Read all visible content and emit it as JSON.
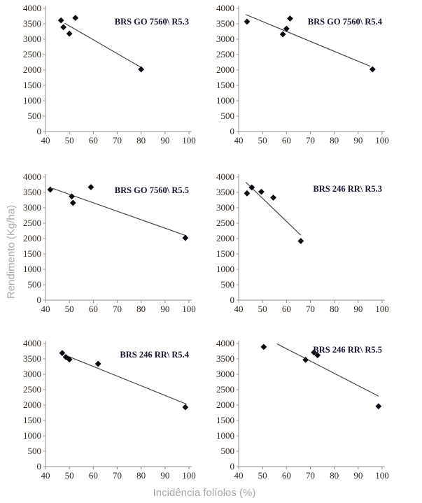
{
  "figure": {
    "ylabel": "Rendimento (Kg/ha)",
    "xlabel": "Incidência folíolos (%)"
  },
  "axes": {
    "x_min": 40,
    "x_max": 100,
    "x_ticks": [
      40,
      50,
      60,
      70,
      80,
      90,
      100
    ],
    "y_min": 0,
    "y_max": 4000,
    "y_ticks": [
      0,
      500,
      1000,
      1500,
      2000,
      2500,
      3000,
      3500,
      4000
    ],
    "grid": false,
    "legend": "none"
  },
  "colors": {
    "point": "#0a0a12",
    "trend": "#474747",
    "axis": "#909090",
    "tick_label": "#33291f",
    "title": "#181830",
    "axis_label": "#a8a8a8",
    "background": "#ffffff"
  },
  "chart_data": [
    {
      "type": "scatter",
      "title": "BRS GO 7560\\ R5.3",
      "points": [
        [
          46.5,
          3610
        ],
        [
          47.5,
          3390
        ],
        [
          50,
          3180
        ],
        [
          52.5,
          3690
        ],
        [
          80,
          2020
        ]
      ],
      "trendline": {
        "x1": 48,
        "y1": 3520,
        "x2": 80.5,
        "y2": 2060
      },
      "title_y": 32
    },
    {
      "type": "scatter",
      "title": "BRS GO 7560\\ R5.4",
      "points": [
        [
          43.5,
          3570
        ],
        [
          58.5,
          3160
        ],
        [
          60,
          3340
        ],
        [
          61.5,
          3670
        ],
        [
          96,
          2020
        ]
      ],
      "trendline": {
        "x1": 43,
        "y1": 3800,
        "x2": 95,
        "y2": 2120
      },
      "title_y": 32
    },
    {
      "type": "scatter",
      "title": "BRS GO 7560\\ R5.5",
      "points": [
        [
          42,
          3590
        ],
        [
          51,
          3370
        ],
        [
          51.5,
          3160
        ],
        [
          59,
          3670
        ],
        [
          98.5,
          2020
        ]
      ],
      "trendline": {
        "x1": 43,
        "y1": 3630,
        "x2": 99,
        "y2": 2090
      },
      "title_y": 32
    },
    {
      "type": "scatter",
      "title": "BRS 246 RR\\ R5.3",
      "points": [
        [
          43.5,
          3470
        ],
        [
          45.5,
          3660
        ],
        [
          49.5,
          3520
        ],
        [
          54.5,
          3330
        ],
        [
          66,
          1920
        ]
      ],
      "trendline": {
        "x1": 43,
        "y1": 3830,
        "x2": 66,
        "y2": 2110
      },
      "title_y": 30
    },
    {
      "type": "scatter",
      "title": "BRS 246 RR\\ R5.4",
      "points": [
        [
          47,
          3690
        ],
        [
          48.5,
          3560
        ],
        [
          50,
          3480
        ],
        [
          62,
          3340
        ],
        [
          98.5,
          1930
        ]
      ],
      "trendline": {
        "x1": 48,
        "y1": 3630,
        "x2": 99,
        "y2": 2030
      },
      "title_y": 29
    },
    {
      "type": "scatter",
      "title": "BRS 246 RR\\ R5.5",
      "points": [
        [
          50.5,
          3890
        ],
        [
          68,
          3470
        ],
        [
          71.5,
          3710
        ],
        [
          73,
          3620
        ],
        [
          98.5,
          1960
        ]
      ],
      "trendline": {
        "x1": 56,
        "y1": 3990,
        "x2": 98.5,
        "y2": 2290
      },
      "title_y": 22
    }
  ]
}
